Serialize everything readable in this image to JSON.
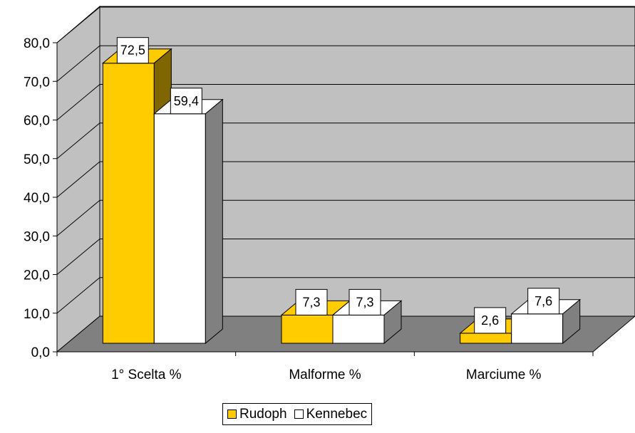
{
  "chart_data": {
    "type": "bar",
    "categories": [
      "1° Scelta %",
      "Malforme %",
      "Marciume %"
    ],
    "series": [
      {
        "name": "Rudoph",
        "values": [
          72.5,
          7.3,
          2.6
        ],
        "labels": [
          "72,5",
          "7,3",
          "2,6"
        ],
        "color": "#FFCC00"
      },
      {
        "name": "Kennebec",
        "values": [
          59.4,
          7.3,
          7.6
        ],
        "labels": [
          "59,4",
          "7,3",
          "7,6"
        ],
        "color": "#FFFFFF"
      }
    ],
    "ylim": [
      0,
      80
    ],
    "yticks": [
      0,
      10,
      20,
      30,
      40,
      50,
      60,
      70,
      80
    ],
    "ytick_labels": [
      "0,0",
      "10,0",
      "20,0",
      "30,0",
      "40,0",
      "50,0",
      "60,0",
      "70,0",
      "80,0"
    ],
    "grid": true,
    "legend_position": "bottom",
    "colors": {
      "wall": "#C0C0C0",
      "floor": "#808080"
    }
  }
}
